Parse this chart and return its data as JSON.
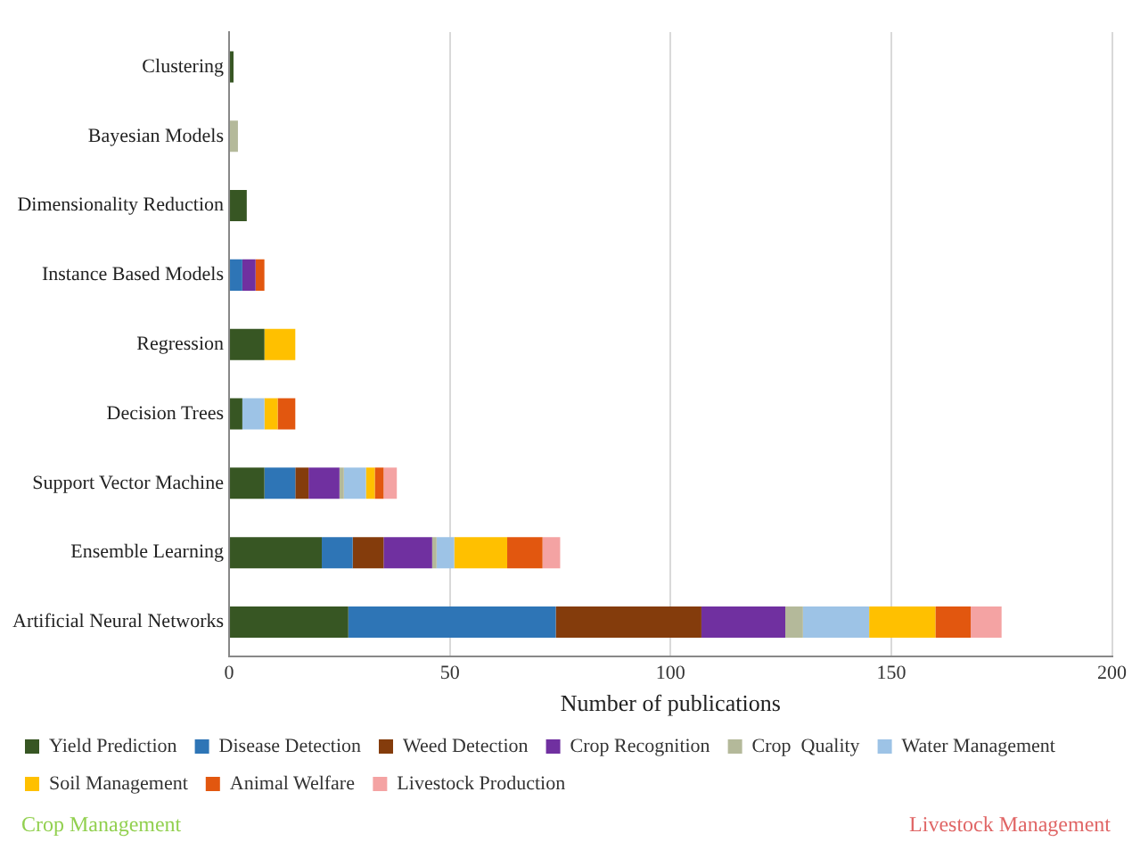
{
  "chart_data": {
    "type": "bar",
    "orientation": "horizontal",
    "stacked": true,
    "xlabel": "Number of publications",
    "categories": [
      "Clustering",
      "Bayesian Models",
      "Dimensionality Reduction",
      "Instance Based Models",
      "Regression",
      "Decision Trees",
      "Support Vector Machine",
      "Ensemble Learning",
      "Artificial Neural Networks"
    ],
    "series": [
      {
        "name": "Yield Prediction",
        "color": "#375623",
        "values": [
          1,
          0,
          4,
          0,
          8,
          3,
          8,
          21,
          27
        ]
      },
      {
        "name": "Disease Detection",
        "color": "#2e75b6",
        "values": [
          0,
          0,
          0,
          3,
          0,
          0,
          7,
          7,
          47
        ]
      },
      {
        "name": "Weed Detection",
        "color": "#843c0c",
        "values": [
          0,
          0,
          0,
          0,
          0,
          0,
          3,
          7,
          33
        ]
      },
      {
        "name": "Crop Recognition",
        "color": "#7030a0",
        "values": [
          0,
          0,
          0,
          3,
          0,
          0,
          7,
          11,
          19
        ]
      },
      {
        "name": "Crop  Quality",
        "color": "#b4b99a",
        "values": [
          0,
          2,
          0,
          0,
          0,
          0,
          1,
          1,
          4
        ]
      },
      {
        "name": "Water Management",
        "color": "#9dc3e6",
        "values": [
          0,
          0,
          0,
          0,
          0,
          5,
          5,
          4,
          15
        ]
      },
      {
        "name": "Soil Management",
        "color": "#ffc000",
        "values": [
          0,
          0,
          0,
          0,
          7,
          3,
          2,
          12,
          15
        ]
      },
      {
        "name": "Animal Welfare",
        "color": "#e2570f",
        "values": [
          0,
          0,
          0,
          2,
          0,
          4,
          2,
          8,
          8
        ]
      },
      {
        "name": "Livestock Production",
        "color": "#f4a3a3",
        "values": [
          0,
          0,
          0,
          0,
          0,
          0,
          3,
          4,
          7
        ]
      }
    ],
    "xlim": [
      0,
      200
    ],
    "xticks": [
      0,
      50,
      100,
      150,
      200
    ],
    "grid": "x",
    "legend": "bottom",
    "annotations": [
      "Crop Management",
      "Livestock Management"
    ]
  }
}
